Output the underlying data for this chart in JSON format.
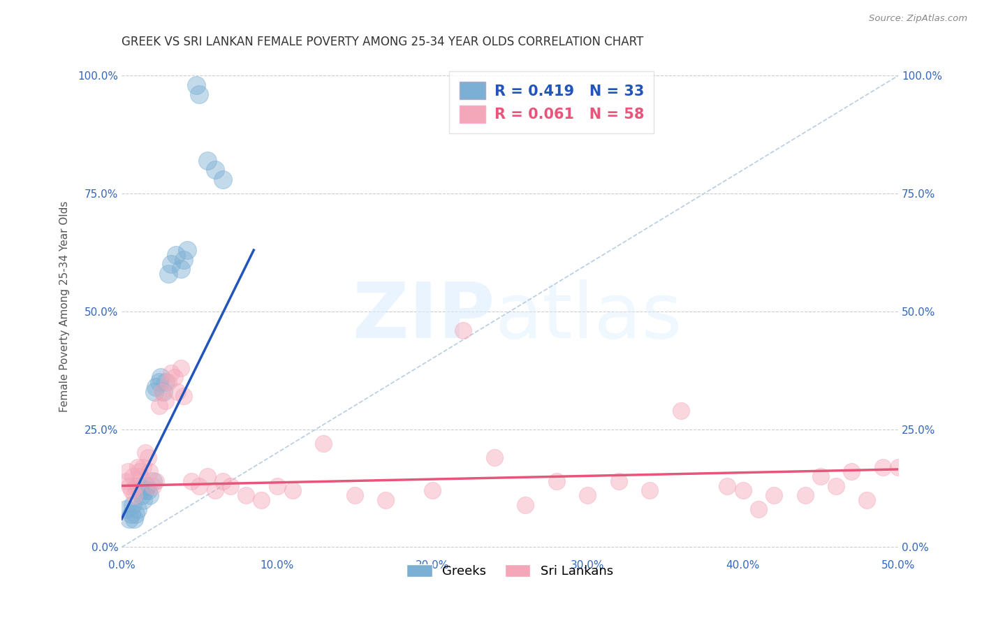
{
  "title": "GREEK VS SRI LANKAN FEMALE POVERTY AMONG 25-34 YEAR OLDS CORRELATION CHART",
  "source": "Source: ZipAtlas.com",
  "ylabel": "Female Poverty Among 25-34 Year Olds",
  "xlim": [
    0.0,
    0.5
  ],
  "ylim": [
    -0.02,
    1.04
  ],
  "xticks": [
    0.0,
    0.1,
    0.2,
    0.3,
    0.4,
    0.5
  ],
  "xticklabels": [
    "0.0%",
    "10.0%",
    "20.0%",
    "30.0%",
    "40.0%",
    "50.0%"
  ],
  "yticks": [
    0.0,
    0.25,
    0.5,
    0.75,
    1.0
  ],
  "yticklabels": [
    "0.0%",
    "25.0%",
    "50.0%",
    "75.0%",
    "100.0%"
  ],
  "greek_R": 0.419,
  "greek_N": 33,
  "srilankan_R": 0.061,
  "srilankan_N": 58,
  "greek_color": "#7BAFD4",
  "srilankan_color": "#F4A7B9",
  "greek_line_color": "#2255BB",
  "srilankan_line_color": "#E8557A",
  "diagonal_color": "#B8CCE4",
  "greek_x": [
    0.003,
    0.005,
    0.006,
    0.007,
    0.008,
    0.009,
    0.01,
    0.011,
    0.012,
    0.013,
    0.014,
    0.015,
    0.016,
    0.017,
    0.018,
    0.02,
    0.021,
    0.022,
    0.024,
    0.025,
    0.027,
    0.028,
    0.03,
    0.032,
    0.035,
    0.038,
    0.04,
    0.042,
    0.048,
    0.05,
    0.055,
    0.06,
    0.065
  ],
  "greek_y": [
    0.08,
    0.06,
    0.07,
    0.09,
    0.06,
    0.07,
    0.08,
    0.13,
    0.12,
    0.11,
    0.1,
    0.12,
    0.13,
    0.12,
    0.11,
    0.14,
    0.33,
    0.34,
    0.35,
    0.36,
    0.33,
    0.35,
    0.58,
    0.6,
    0.62,
    0.59,
    0.61,
    0.63,
    0.98,
    0.96,
    0.82,
    0.8,
    0.78
  ],
  "srilankan_x": [
    0.003,
    0.004,
    0.005,
    0.006,
    0.007,
    0.008,
    0.009,
    0.01,
    0.011,
    0.012,
    0.014,
    0.015,
    0.017,
    0.018,
    0.02,
    0.022,
    0.024,
    0.026,
    0.028,
    0.03,
    0.032,
    0.034,
    0.036,
    0.038,
    0.04,
    0.045,
    0.05,
    0.055,
    0.06,
    0.065,
    0.07,
    0.08,
    0.09,
    0.1,
    0.11,
    0.13,
    0.15,
    0.17,
    0.2,
    0.22,
    0.24,
    0.26,
    0.28,
    0.3,
    0.32,
    0.34,
    0.36,
    0.39,
    0.4,
    0.42,
    0.45,
    0.47,
    0.49,
    0.5,
    0.48,
    0.46,
    0.44,
    0.41
  ],
  "srilankan_y": [
    0.14,
    0.16,
    0.13,
    0.12,
    0.15,
    0.11,
    0.13,
    0.17,
    0.16,
    0.15,
    0.17,
    0.2,
    0.19,
    0.16,
    0.13,
    0.14,
    0.3,
    0.33,
    0.31,
    0.35,
    0.37,
    0.36,
    0.33,
    0.38,
    0.32,
    0.14,
    0.13,
    0.15,
    0.12,
    0.14,
    0.13,
    0.11,
    0.1,
    0.13,
    0.12,
    0.22,
    0.11,
    0.1,
    0.12,
    0.46,
    0.19,
    0.09,
    0.14,
    0.11,
    0.14,
    0.12,
    0.29,
    0.13,
    0.12,
    0.11,
    0.15,
    0.16,
    0.17,
    0.17,
    0.1,
    0.13,
    0.11,
    0.08
  ],
  "greek_line_x": [
    0.0,
    0.085
  ],
  "greek_line_y": [
    0.06,
    0.63
  ],
  "sri_line_x": [
    0.0,
    0.5
  ],
  "sri_line_y": [
    0.13,
    0.165
  ]
}
